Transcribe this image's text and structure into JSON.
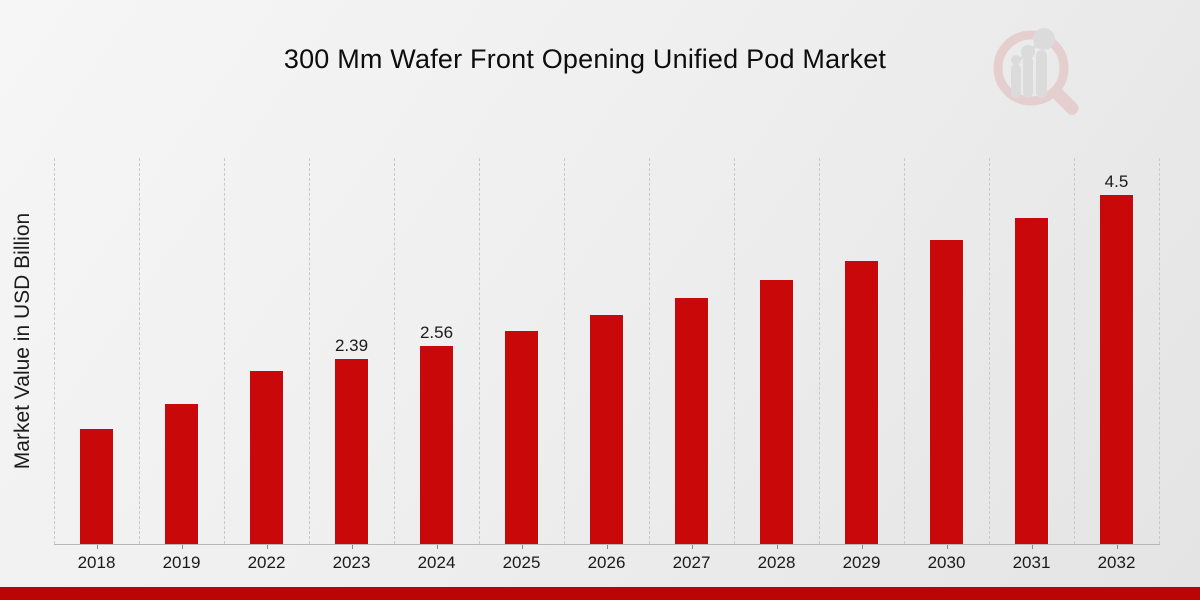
{
  "header": {
    "title": "300 Mm Wafer Front Opening Unified Pod Market"
  },
  "axes": {
    "y_title": "Market Value in USD Billion"
  },
  "watermark": {
    "name": "market-research-future-logo",
    "ring_color": "#d98f8f",
    "bars_color": "#b9b9bd"
  },
  "colors": {
    "bar": "#c90909",
    "footer_stripe": "#bb0404",
    "gridline": "#c9c9c9",
    "background": "#ededed"
  },
  "chart_data": {
    "type": "bar",
    "title": "300 Mm Wafer Front Opening Unified Pod Market",
    "xlabel": "",
    "ylabel": "Market Value in USD Billion",
    "categories": [
      "2018",
      "2019",
      "2022",
      "2023",
      "2024",
      "2025",
      "2026",
      "2027",
      "2028",
      "2029",
      "2030",
      "2031",
      "2032"
    ],
    "values": [
      1.49,
      1.81,
      2.23,
      2.39,
      2.56,
      2.75,
      2.96,
      3.17,
      3.4,
      3.65,
      3.92,
      4.2,
      4.5
    ],
    "data_labels": [
      "",
      "",
      "",
      "2.39",
      "2.56",
      "",
      "",
      "",
      "",
      "",
      "",
      "",
      "4.5"
    ],
    "ylim": [
      0,
      5
    ],
    "y_ticks_shown": false,
    "grid": "vertical-dashed",
    "legend": "none",
    "bar_color": "#c90909"
  }
}
